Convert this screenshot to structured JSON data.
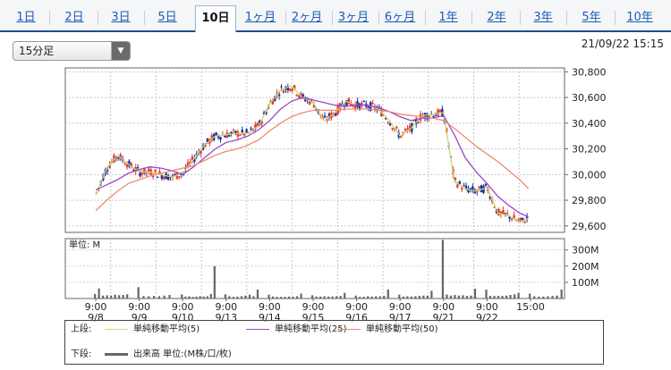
{
  "tabs": [
    {
      "label": "1日"
    },
    {
      "label": "2日"
    },
    {
      "label": "3日"
    },
    {
      "label": "5日"
    },
    {
      "label": "10日",
      "active": true
    },
    {
      "label": "1ヶ月"
    },
    {
      "label": "2ヶ月"
    },
    {
      "label": "3ヶ月"
    },
    {
      "label": "6ヶ月"
    },
    {
      "label": "1年"
    },
    {
      "label": "2年"
    },
    {
      "label": "3年"
    },
    {
      "label": "5年"
    },
    {
      "label": "10年"
    }
  ],
  "toolbar": {
    "interval_value": "15分足",
    "datetime": "21/09/22 15:15"
  },
  "colors": {
    "candle_up": "#e83a2c",
    "candle_down": "#1c2fa8",
    "ma5": "#c7d86e",
    "ma25": "#9b47c8",
    "ma50": "#ef8a6a",
    "volume": "#666666"
  },
  "chart_data": [
    {
      "type": "line",
      "title": "",
      "y_ticks": [
        "30,800",
        "30,600",
        "30,400",
        "30,200",
        "30,000",
        "29,800",
        "29,600"
      ],
      "ylim": [
        29550,
        30830
      ],
      "x_ticks": [
        {
          "time": "9:00",
          "date": "9/8"
        },
        {
          "time": "9:00",
          "date": "9/9"
        },
        {
          "time": "9:00",
          "date": "9/10"
        },
        {
          "time": "9:00",
          "date": "9/13"
        },
        {
          "time": "9:00",
          "date": "9/14"
        },
        {
          "time": "9:00",
          "date": "9/15"
        },
        {
          "time": "9:00",
          "date": "9/16"
        },
        {
          "time": "9:00",
          "date": "9/17"
        },
        {
          "time": "9:00",
          "date": "9/21"
        },
        {
          "time": "9:00",
          "date": "9/22"
        },
        {
          "time": "15:00",
          "date": ""
        }
      ],
      "x": [
        0,
        0.25,
        0.5,
        0.75,
        1,
        1.25,
        1.5,
        1.75,
        2,
        2.25,
        2.5,
        2.75,
        3,
        3.25,
        3.5,
        3.75,
        4,
        4.25,
        4.5,
        4.75,
        5,
        5.25,
        5.5,
        5.75,
        6,
        6.25,
        6.5,
        6.75,
        7,
        7.25,
        7.5,
        7.75,
        8,
        8.25,
        8.5,
        8.75,
        9,
        9.25,
        9.5,
        9.75,
        9.95
      ],
      "series": [
        {
          "name": "単純移動平均(5)",
          "values": [
            29840,
            30050,
            30150,
            30080,
            30020,
            30020,
            30000,
            29980,
            30010,
            30120,
            30230,
            30300,
            30310,
            30320,
            30320,
            30380,
            30550,
            30660,
            30690,
            30600,
            30560,
            30420,
            30480,
            30570,
            30540,
            30540,
            30510,
            30420,
            30300,
            30360,
            30460,
            30470,
            30480,
            29950,
            29890,
            29870,
            29900,
            29700,
            29680,
            29630,
            29660
          ]
        },
        {
          "name": "単純移動平均(25)",
          "values": [
            29880,
            29920,
            29960,
            30010,
            30040,
            30060,
            30050,
            30030,
            30000,
            30060,
            30130,
            30200,
            30250,
            30270,
            30300,
            30350,
            30420,
            30510,
            30570,
            30600,
            30580,
            30560,
            30540,
            30530,
            30540,
            30540,
            30520,
            30490,
            30450,
            30420,
            30440,
            30440,
            30460,
            30310,
            30130,
            30020,
            29930,
            29830,
            29760,
            29700,
            29670
          ]
        },
        {
          "name": "単純移動平均(50)",
          "values": [
            29720,
            29800,
            29870,
            29930,
            29960,
            29990,
            30010,
            30030,
            30050,
            30070,
            30110,
            30150,
            30180,
            30200,
            30230,
            30270,
            30340,
            30400,
            30450,
            30480,
            30500,
            30500,
            30500,
            30510,
            30510,
            30510,
            30500,
            30490,
            30470,
            30460,
            30450,
            30440,
            30420,
            30360,
            30290,
            30220,
            30160,
            30100,
            30030,
            29960,
            29890
          ]
        }
      ]
    },
    {
      "type": "bar",
      "unit_label": "単位: M",
      "y_ticks": [
        "300M",
        "200M",
        "100M"
      ],
      "ylim": [
        0,
        370
      ],
      "volumes": [
        [
          28,
          62,
          18,
          20,
          18,
          24,
          20,
          22,
          26
        ],
        [
          70,
          15,
          14,
          16,
          14,
          18,
          22
        ],
        [
          25,
          12,
          14,
          10,
          12,
          14,
          12,
          14,
          28,
          200
        ],
        [
          26,
          14,
          10,
          12,
          14,
          18,
          24,
          14,
          55
        ],
        [
          24,
          12,
          10,
          10,
          10,
          12,
          10,
          14,
          30
        ],
        [
          20,
          12,
          12,
          14,
          12,
          12,
          14,
          16,
          35
        ],
        [
          18,
          10,
          10,
          14,
          12,
          14,
          14,
          16,
          55
        ],
        [
          24,
          12,
          14,
          12,
          14,
          16,
          18,
          18,
          48
        ],
        [
          362,
          24,
          18,
          22,
          18,
          20,
          16,
          18,
          60
        ],
        [
          55,
          16,
          16,
          16,
          16,
          18,
          22,
          26,
          35
        ],
        [
          30,
          14,
          12,
          12,
          14,
          16,
          18,
          55
        ]
      ]
    }
  ],
  "legend": {
    "upper_label": "上段:",
    "lower_label": "下段:",
    "items": [
      "単純移動平均(5)",
      "単純移動平均(25)",
      "単純移動平均(50)"
    ],
    "volume_label": "出来高 単位:(M株/口/枚)"
  }
}
